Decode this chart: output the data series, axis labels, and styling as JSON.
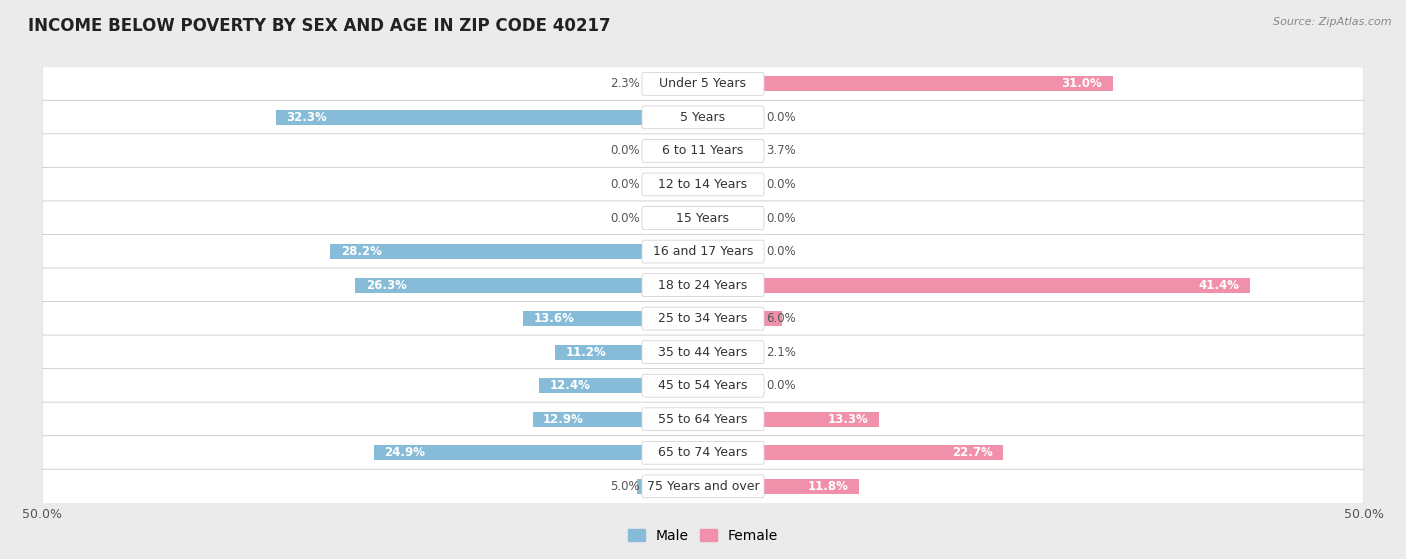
{
  "title": "INCOME BELOW POVERTY BY SEX AND AGE IN ZIP CODE 40217",
  "source": "Source: ZipAtlas.com",
  "categories": [
    "Under 5 Years",
    "5 Years",
    "6 to 11 Years",
    "12 to 14 Years",
    "15 Years",
    "16 and 17 Years",
    "18 to 24 Years",
    "25 to 34 Years",
    "35 to 44 Years",
    "45 to 54 Years",
    "55 to 64 Years",
    "65 to 74 Years",
    "75 Years and over"
  ],
  "male": [
    2.3,
    32.3,
    0.0,
    0.0,
    0.0,
    28.2,
    26.3,
    13.6,
    11.2,
    12.4,
    12.9,
    24.9,
    5.0
  ],
  "female": [
    31.0,
    0.0,
    3.7,
    0.0,
    0.0,
    0.0,
    41.4,
    6.0,
    2.1,
    0.0,
    13.3,
    22.7,
    11.8
  ],
  "male_color": "#87bcd9",
  "female_color": "#f090aa",
  "background_color": "#ebebeb",
  "row_bg_color": "#ffffff",
  "row_alt_bg": "#f5f5f5",
  "xlim": 50.0,
  "title_fontsize": 12,
  "label_fontsize": 9,
  "value_fontsize": 8.5,
  "axis_fontsize": 9,
  "bar_height": 0.45,
  "inside_label_threshold": 8.0
}
